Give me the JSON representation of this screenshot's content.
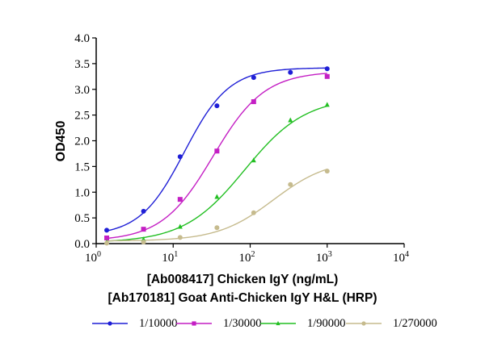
{
  "chart_data": {
    "type": "line",
    "title": "",
    "xlabel": "[Ab008417] Chicken IgY (ng/mL)",
    "xlabel2": "[Ab170181] Goat Anti-Chicken IgY H&L (HRP)",
    "ylabel": "OD450",
    "xscale": "log",
    "xlim": [
      1,
      10000
    ],
    "ylim": [
      0,
      4.0
    ],
    "xticks": [
      "10^0",
      "10^1",
      "10^2",
      "10^3",
      "10^4"
    ],
    "yticks": [
      "0.0",
      "0.5",
      "1.0",
      "1.5",
      "2.0",
      "2.5",
      "3.0",
      "3.5",
      "4.0"
    ],
    "grid": false,
    "legend_position": "bottom",
    "x": [
      1.37,
      4.12,
      12.3,
      37,
      111,
      333,
      1000
    ],
    "series": [
      {
        "name": "1/10000",
        "color": "#1f1fd6",
        "marker": "circle",
        "values": [
          0.26,
          0.63,
          1.69,
          2.68,
          3.23,
          3.33,
          3.4
        ],
        "fit": {
          "bottom": 0.15,
          "top": 3.42,
          "ec50": 14,
          "hill": 1.5
        }
      },
      {
        "name": "1/30000",
        "color": "#c41fc4",
        "marker": "square",
        "values": [
          0.11,
          0.28,
          0.86,
          1.8,
          2.76,
          null,
          3.25
        ],
        "fit": {
          "bottom": 0.05,
          "top": 3.35,
          "ec50": 33,
          "hill": 1.3
        }
      },
      {
        "name": "1/90000",
        "color": "#22bf22",
        "marker": "triangle",
        "values": [
          0.03,
          0.08,
          0.33,
          0.91,
          1.62,
          2.4,
          2.7
        ],
        "fit": {
          "bottom": 0.02,
          "top": 2.85,
          "ec50": 85,
          "hill": 1.1
        }
      },
      {
        "name": "1/270000",
        "color": "#c6bb8e",
        "marker": "circle",
        "values": [
          0.01,
          0.03,
          0.12,
          0.31,
          0.6,
          1.15,
          1.41
        ],
        "fit": {
          "bottom": 0.05,
          "top": 1.65,
          "ec50": 200,
          "hill": 1.2
        }
      }
    ]
  }
}
